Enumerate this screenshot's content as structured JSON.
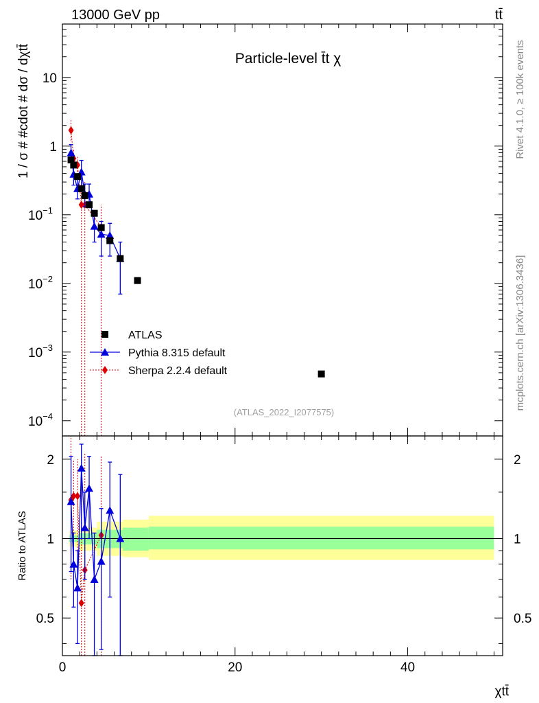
{
  "header": {
    "energy": "13000 GeV pp",
    "process": "tt̄",
    "title": "Particle-level t̄t χ",
    "side_label": "Rivet 4.1.0, ≥ 100k events",
    "side_url": "mcplots.cern.ch [arXiv:1306.3436]",
    "analysis": "(ATLAS_2022_I2077575)"
  },
  "chart_data": {
    "type": "scatter",
    "xlabel": "χtt̄",
    "ylabel": "1 / σ # #cdot # dσ / dχtt̄",
    "ratio_ylabel": "Ratio to ATLAS",
    "xlim": [
      0,
      51
    ],
    "ylim": [
      6e-05,
      60
    ],
    "ratio_ylim": [
      0.36,
      2.45
    ],
    "x_ticks": [
      0,
      20,
      40
    ],
    "y_ticks": [
      {
        "value": 10,
        "label": "10"
      },
      {
        "value": 1,
        "label": "1"
      },
      {
        "value": 0.1,
        "base": "10",
        "exp": "−1"
      },
      {
        "value": 0.01,
        "base": "10",
        "exp": "−2"
      },
      {
        "value": 0.001,
        "base": "10",
        "exp": "−3"
      },
      {
        "value": 0.0001,
        "base": "10",
        "exp": "−4"
      }
    ],
    "ratio_ticks": [
      {
        "value": 0.5,
        "label": "0.5"
      },
      {
        "value": 1,
        "label": "1"
      },
      {
        "value": 2,
        "label": "2"
      }
    ],
    "legend": [
      {
        "name": "ATLAS",
        "color": "#000000",
        "marker": "square"
      },
      {
        "name": "Pythia 8.315 default",
        "color": "#0000dd",
        "marker": "triangle"
      },
      {
        "name": "Sherpa 2.2.4 default",
        "color": "#dd0000",
        "marker": "diamond"
      }
    ],
    "series": [
      {
        "name": "ATLAS",
        "color": "#000000",
        "points": [
          {
            "x": 1.0,
            "y": 0.63
          },
          {
            "x": 1.3,
            "y": 0.53
          },
          {
            "x": 1.75,
            "y": 0.36
          },
          {
            "x": 2.2,
            "y": 0.24
          },
          {
            "x": 2.6,
            "y": 0.19
          },
          {
            "x": 3.1,
            "y": 0.14
          },
          {
            "x": 3.7,
            "y": 0.105
          },
          {
            "x": 4.5,
            "y": 0.065
          },
          {
            "x": 5.5,
            "y": 0.042
          },
          {
            "x": 6.7,
            "y": 0.023
          },
          {
            "x": 8.7,
            "y": 0.011
          },
          {
            "x": 30.0,
            "y": 0.00048
          }
        ]
      },
      {
        "name": "Pythia 8.315 default",
        "color": "#0000dd",
        "points": [
          {
            "x": 1.0,
            "y": 0.8,
            "lo": 0.6,
            "hi": 1.05,
            "r": 1.38,
            "rlo": 0.75,
            "rhi": 2.05
          },
          {
            "x": 1.3,
            "y": 0.39,
            "lo": 0.27,
            "hi": 0.55,
            "r": 0.8,
            "rlo": 0.55,
            "rhi": 1.05
          },
          {
            "x": 1.75,
            "y": 0.24,
            "lo": 0.17,
            "hi": 0.33,
            "r": 0.65,
            "rlo": 0.4,
            "rhi": 0.9
          },
          {
            "x": 2.2,
            "y": 0.42,
            "lo": 0.22,
            "hi": 0.62,
            "r": 1.85,
            "rlo": 1.0,
            "rhi": 2.28
          },
          {
            "x": 2.6,
            "y": 0.2,
            "lo": 0.13,
            "hi": 0.28,
            "r": 1.1,
            "rlo": 0.7,
            "rhi": 1.5
          },
          {
            "x": 3.1,
            "y": 0.2,
            "lo": 0.13,
            "hi": 0.28,
            "r": 1.55,
            "rlo": 1.0,
            "rhi": 2.05
          },
          {
            "x": 3.7,
            "y": 0.068,
            "lo": 0.04,
            "hi": 0.1,
            "r": 0.7,
            "rlo": 0.35,
            "rhi": 1.05
          },
          {
            "x": 4.5,
            "y": 0.052,
            "lo": 0.025,
            "hi": 0.08,
            "r": 0.82,
            "rlo": 0.38,
            "rhi": 1.3
          },
          {
            "x": 5.5,
            "y": 0.05,
            "lo": 0.025,
            "hi": 0.075,
            "r": 1.28,
            "rlo": 0.6,
            "rhi": 1.95
          },
          {
            "x": 6.7,
            "y": 0.023,
            "lo": 0.007,
            "hi": 0.04,
            "r": 1.0,
            "rlo": 0.3,
            "rhi": 1.75
          }
        ]
      },
      {
        "name": "Sherpa 2.2.4 default",
        "color": "#dd0000",
        "points": [
          {
            "x": 1.0,
            "y": 1.7,
            "lo": 1.2,
            "hi": 2.4,
            "r": 1.4,
            "rlo": 0.7,
            "rhi": 2.45
          },
          {
            "x": 1.3,
            "y": 0.66,
            "lo": 0.4,
            "hi": 0.9,
            "r": 1.45,
            "rlo": 0.95,
            "rhi": 2.0
          },
          {
            "x": 1.75,
            "y": 0.53,
            "lo": 0.35,
            "hi": 0.72,
            "r": 1.45,
            "rlo": 0.9,
            "rhi": 2.0
          },
          {
            "x": 2.2,
            "y": 0.14,
            "lo": 5e-05,
            "hi": 0.3,
            "r": 0.57,
            "rlo": 0.3,
            "rhi": 2.0
          },
          {
            "x": 2.6,
            "y": 0.14,
            "lo": 5e-05,
            "hi": 0.3,
            "r": 0.76,
            "rlo": 0.3,
            "rhi": 2.1
          },
          {
            "x": 4.5,
            "y": 0.066,
            "lo": 5e-05,
            "hi": 0.14,
            "r": 1.03,
            "rlo": 0.3,
            "rhi": 2.05
          }
        ]
      }
    ],
    "bands": [
      {
        "x0": 0.8,
        "x1": 2.0,
        "inner": [
          0.97,
          1.03
        ],
        "outer": [
          0.93,
          1.07
        ]
      },
      {
        "x0": 2.0,
        "x1": 4.0,
        "inner": [
          0.95,
          1.05
        ],
        "outer": [
          0.9,
          1.1
        ]
      },
      {
        "x0": 4.0,
        "x1": 7.0,
        "inner": [
          0.92,
          1.08
        ],
        "outer": [
          0.86,
          1.16
        ]
      },
      {
        "x0": 7.0,
        "x1": 10.0,
        "inner": [
          0.9,
          1.1
        ],
        "outer": [
          0.85,
          1.18
        ]
      },
      {
        "x0": 10.0,
        "x1": 50.0,
        "inner": [
          0.91,
          1.11
        ],
        "outer": [
          0.83,
          1.22
        ]
      }
    ]
  }
}
